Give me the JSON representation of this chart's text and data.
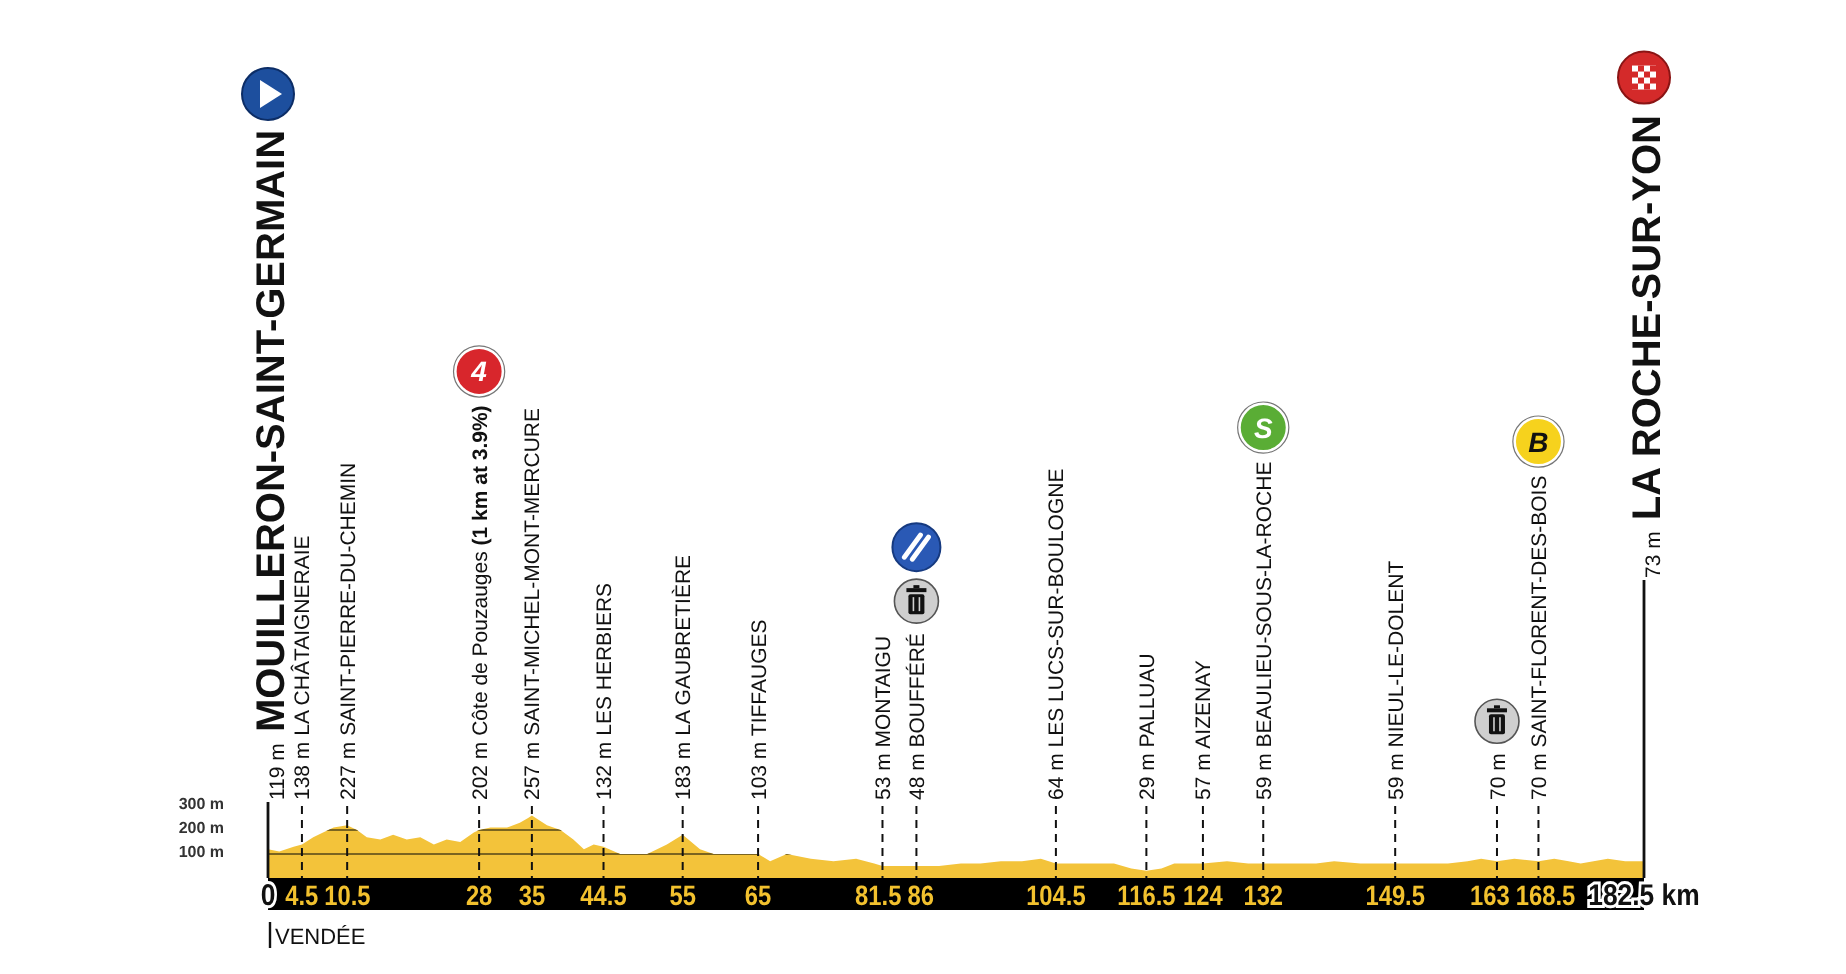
{
  "chart_data": {
    "type": "area",
    "color": "#f3c33a",
    "x": [
      0,
      1.5,
      3.4,
      4.5,
      6,
      7.3,
      8.7,
      10.5,
      11.8,
      13.1,
      14.9,
      16.6,
      18.4,
      20.2,
      22,
      23.7,
      25.5,
      27.3,
      28,
      29.5,
      31.7,
      33.4,
      34.5,
      35,
      37,
      38.8,
      40.5,
      41.9,
      43.2,
      44.5,
      46.7,
      50.3,
      52.9,
      55,
      57.3,
      59.1,
      62,
      65,
      66.6,
      68.8,
      72,
      75,
      78,
      80.4,
      81.5,
      84.8,
      86,
      89,
      91.9,
      94.5,
      97.2,
      100,
      102.5,
      104.5,
      107.8,
      110,
      112.2,
      114.5,
      116.5,
      118.5,
      120.2,
      124,
      127.2,
      130,
      132,
      134,
      136.1,
      139,
      141.4,
      144.9,
      147,
      149.5,
      151.5,
      153.8,
      156.5,
      159.1,
      160.9,
      163,
      165.3,
      168.5,
      170.6,
      172.5,
      174.1,
      177.7,
      180,
      182.5
    ],
    "values": [
      120,
      110,
      130,
      140,
      170,
      190,
      210,
      220,
      200,
      170,
      160,
      180,
      160,
      170,
      140,
      160,
      150,
      190,
      200,
      210,
      210,
      230,
      250,
      260,
      220,
      200,
      160,
      120,
      140,
      130,
      100,
      100,
      140,
      180,
      120,
      100,
      100,
      100,
      70,
      100,
      80,
      70,
      80,
      60,
      50,
      50,
      50,
      50,
      60,
      60,
      70,
      70,
      80,
      60,
      60,
      60,
      60,
      40,
      30,
      40,
      60,
      60,
      70,
      60,
      60,
      60,
      60,
      60,
      70,
      60,
      60,
      60,
      60,
      60,
      60,
      70,
      80,
      70,
      80,
      70,
      80,
      70,
      60,
      80,
      70,
      70
    ],
    "xlim": [
      0,
      182.5
    ],
    "ylim": [
      0,
      300
    ],
    "xticks": [
      0,
      4.5,
      10.5,
      28,
      35,
      44.5,
      55,
      65,
      81.5,
      86,
      104.5,
      116.5,
      124,
      132,
      149.5,
      163,
      168.5,
      {
        "value": 182.5,
        "label": "182.5 km"
      }
    ],
    "yticks": [
      {
        "value": 100,
        "label": "100 m"
      },
      {
        "value": 200,
        "label": "200 m"
      },
      {
        "value": 300,
        "label": "300 m"
      }
    ],
    "grid": "y",
    "ref_lines": [
      {
        "axis": "x",
        "value": 0,
        "label": "119 m MOUILLERON-SAINT-GERMAIN",
        "line_style": "solid"
      },
      {
        "axis": "x",
        "value": 4.5,
        "label": "138 m LA CHÂTAIGNERAIE",
        "line_style": "dashed"
      },
      {
        "axis": "x",
        "value": 10.5,
        "label": "227 m SAINT-PIERRE-DU-CHEMIN",
        "line_style": "dashed"
      },
      {
        "axis": "x",
        "value": 28,
        "label": "202 m Côte de Pouzauges (1 km at 3.9%)",
        "line_style": "dashed"
      },
      {
        "axis": "x",
        "value": 35,
        "label": "257 m SAINT-MICHEL-MONT-MERCURE",
        "line_style": "dashed"
      },
      {
        "axis": "x",
        "value": 44.5,
        "label": "132 m LES HERBIERS",
        "line_style": "dashed"
      },
      {
        "axis": "x",
        "value": 55,
        "label": "183 m LA GAUBRETIÈRE",
        "line_style": "dashed"
      },
      {
        "axis": "x",
        "value": 65,
        "label": "103 m TIFFAUGES",
        "line_style": "dashed"
      },
      {
        "axis": "x",
        "value": 81.5,
        "label": "53 m MONTAIGU",
        "line_style": "dashed"
      },
      {
        "axis": "x",
        "value": 86,
        "label": "48 m BOUFFÉRÉ",
        "line_style": "dashed"
      },
      {
        "axis": "x",
        "value": 104.5,
        "label": "64 m LES LUCS-SUR-BOULOGNE",
        "line_style": "dashed"
      },
      {
        "axis": "x",
        "value": 116.5,
        "label": "29 m PALLUAU",
        "line_style": "dashed"
      },
      {
        "axis": "x",
        "value": 124,
        "label": "57 m AIZENAY",
        "line_style": "dashed"
      },
      {
        "axis": "x",
        "value": 132,
        "label": "59 m BEAULIEU-SOUS-LA-ROCHE",
        "line_style": "dashed"
      },
      {
        "axis": "x",
        "value": 149.5,
        "label": "59 m NIEUL-LE-DOLENT",
        "line_style": "dashed"
      },
      {
        "axis": "x",
        "value": 163,
        "label": "70 m",
        "line_style": "dashed"
      },
      {
        "axis": "x",
        "value": 168.5,
        "label": "70 m SAINT-FLORENT-DES-BOIS",
        "line_style": "dashed"
      },
      {
        "axis": "x",
        "value": 182.5,
        "label": "73 m LA ROCHE-SUR-YON",
        "line_style": "solid"
      }
    ],
    "annotations": [
      "4",
      "S",
      "B",
      "VENDÉE"
    ]
  }
}
